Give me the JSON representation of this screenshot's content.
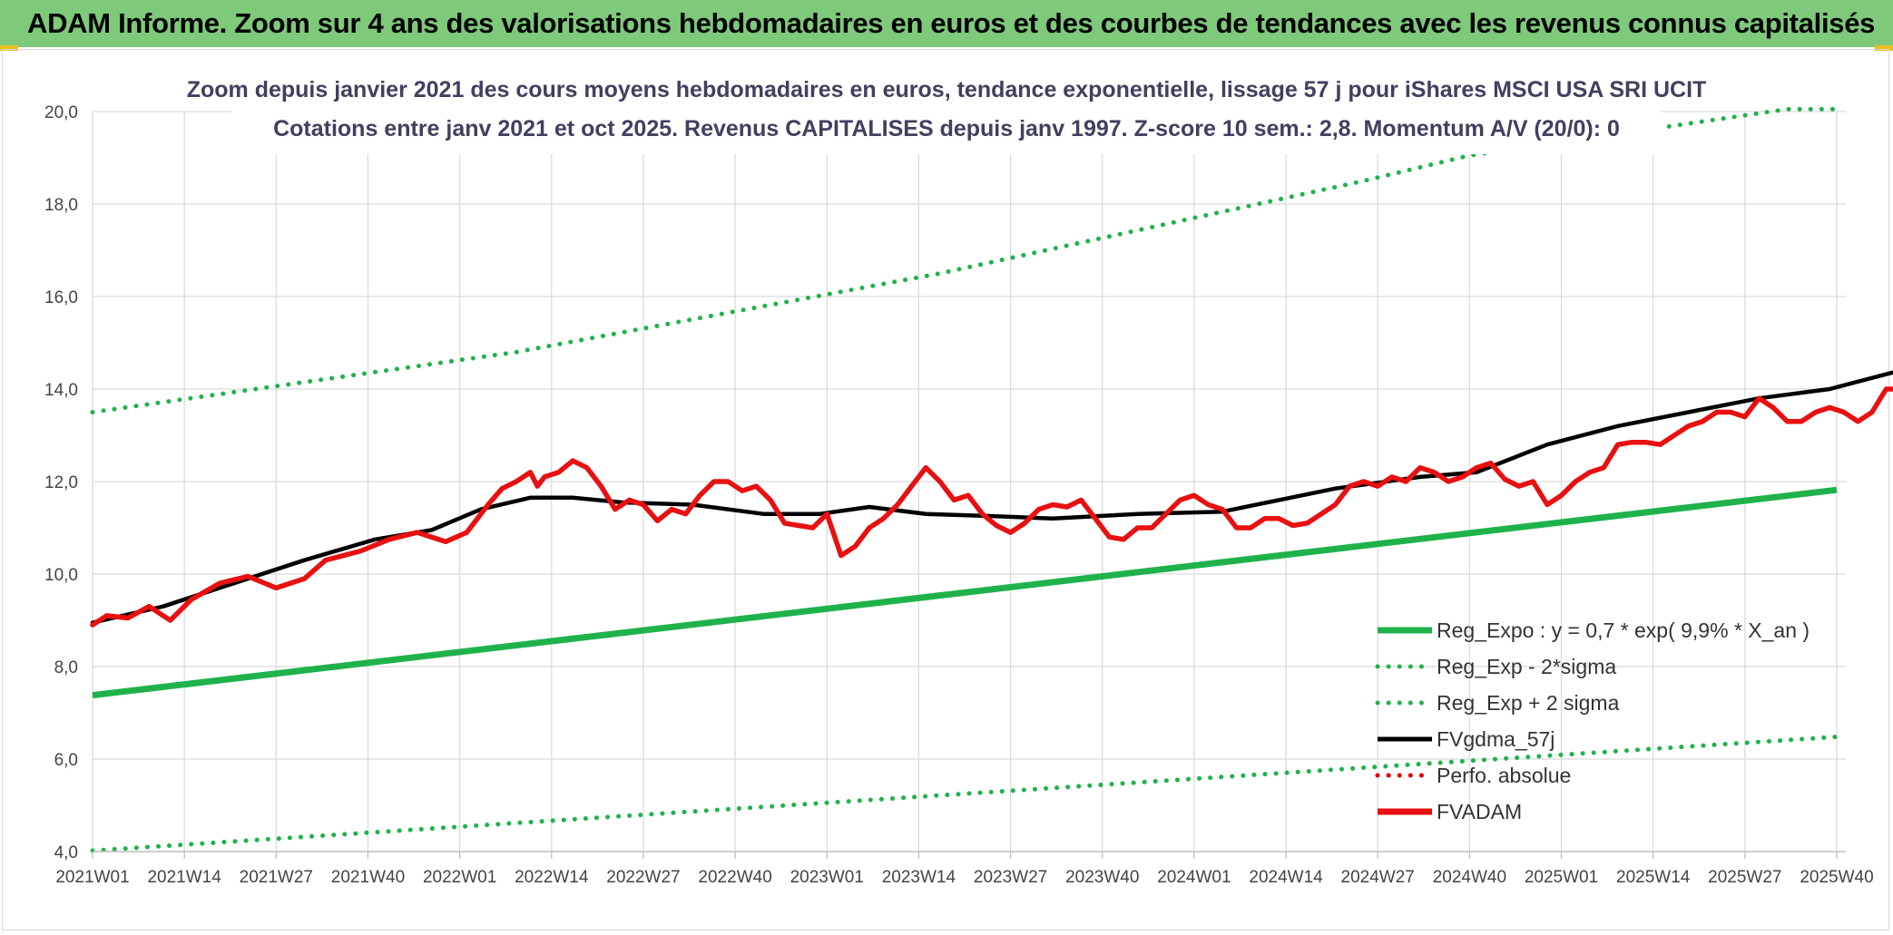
{
  "banner": {
    "title": "ADAM Informe. Zoom sur 4 ans des valorisations hebdomadaires en euros et des courbes de tendances avec les revenus connus capitalisés",
    "color": "#7ec97a"
  },
  "chart_data": {
    "type": "line",
    "title_line1": "Zoom depuis janvier 2021 des cours moyens hebdomadaires en euros, tendance exponentielle, lissage 57 j pour iShares MSCI USA SRI UCIT",
    "title_line2": "Cotations entre janv 2021 et oct 2025. Revenus CAPITALISES depuis janv 1997. Z-score 10 sem.: 2,8. Momentum A/V (20/0): 0",
    "ylim": [
      4,
      20
    ],
    "yticks": [
      "4,0",
      "6,0",
      "8,0",
      "10,0",
      "12,0",
      "14,0",
      "16,0",
      "18,0",
      "20,0"
    ],
    "xtick_labels": [
      "2021W01",
      "2021W14",
      "2021W27",
      "2021W40",
      "2022W01",
      "2022W14",
      "2022W27",
      "2022W40",
      "2023W01",
      "2023W14",
      "2023W27",
      "2023W40",
      "2024W01",
      "2024W14",
      "2024W27",
      "2024W40",
      "2025W01",
      "2025W14",
      "2025W27",
      "2025W40"
    ],
    "week_count": 248,
    "series": [
      {
        "name": "Reg_Expo : y = 0,7 * exp( 9,9% *  X_an )",
        "style": "solid",
        "color": "#1fb24b",
        "points": [
          [
            0,
            7.38
          ],
          [
            247,
            11.82
          ]
        ]
      },
      {
        "name": "Reg_Exp - 2*sigma",
        "style": "dotted",
        "color": "#1fb24b",
        "points": [
          [
            0,
            4.02
          ],
          [
            247,
            6.48
          ]
        ]
      },
      {
        "name": "Reg_Exp + 2 sigma",
        "style": "dotted",
        "color": "#1fb24b",
        "points": [
          [
            0,
            13.5
          ],
          [
            60,
            14.8
          ],
          [
            120,
            16.5
          ],
          [
            180,
            18.5
          ],
          [
            195,
            19.05
          ],
          [
            240,
            20.05
          ],
          [
            247,
            20.05
          ]
        ]
      },
      {
        "name": "FVgdma_57j",
        "style": "solid",
        "color": "#000000",
        "points": [
          [
            0,
            8.95
          ],
          [
            10,
            9.3
          ],
          [
            20,
            9.8
          ],
          [
            30,
            10.3
          ],
          [
            40,
            10.75
          ],
          [
            48,
            10.95
          ],
          [
            55,
            11.4
          ],
          [
            62,
            11.65
          ],
          [
            68,
            11.65
          ],
          [
            75,
            11.55
          ],
          [
            85,
            11.5
          ],
          [
            95,
            11.3
          ],
          [
            103,
            11.3
          ],
          [
            110,
            11.45
          ],
          [
            118,
            11.3
          ],
          [
            128,
            11.25
          ],
          [
            136,
            11.2
          ],
          [
            148,
            11.3
          ],
          [
            160,
            11.35
          ],
          [
            168,
            11.6
          ],
          [
            176,
            11.85
          ],
          [
            188,
            12.1
          ],
          [
            196,
            12.2
          ],
          [
            206,
            12.8
          ],
          [
            216,
            13.2
          ],
          [
            226,
            13.5
          ],
          [
            236,
            13.8
          ],
          [
            246,
            14.0
          ],
          [
            256,
            14.4
          ],
          [
            264,
            14.8
          ],
          [
            271,
            15.2
          ],
          [
            277,
            15.2
          ],
          [
            283,
            15.05
          ],
          [
            290,
            14.5
          ],
          [
            296,
            14.15
          ],
          [
            304,
            14.35
          ],
          [
            316,
            14.6
          ],
          [
            320,
            14.8
          ],
          [
            322,
            14.9
          ]
        ]
      },
      {
        "name": "Perfo. absolue",
        "style": "dotted",
        "color": "#e00000",
        "points": []
      },
      {
        "name": "FVADAM",
        "style": "solid",
        "color": "#e81010",
        "points": [
          [
            0,
            8.9
          ],
          [
            2,
            9.1
          ],
          [
            5,
            9.05
          ],
          [
            8,
            9.3
          ],
          [
            11,
            9.0
          ],
          [
            14,
            9.45
          ],
          [
            18,
            9.8
          ],
          [
            22,
            9.95
          ],
          [
            26,
            9.7
          ],
          [
            30,
            9.9
          ],
          [
            33,
            10.3
          ],
          [
            38,
            10.5
          ],
          [
            42,
            10.75
          ],
          [
            46,
            10.9
          ],
          [
            50,
            10.7
          ],
          [
            53,
            10.9
          ],
          [
            56,
            11.5
          ],
          [
            58,
            11.85
          ],
          [
            60,
            12.0
          ],
          [
            62,
            12.2
          ],
          [
            63,
            11.9
          ],
          [
            64,
            12.1
          ],
          [
            66,
            12.2
          ],
          [
            68,
            12.45
          ],
          [
            70,
            12.3
          ],
          [
            72,
            11.9
          ],
          [
            74,
            11.4
          ],
          [
            76,
            11.6
          ],
          [
            78,
            11.5
          ],
          [
            80,
            11.15
          ],
          [
            82,
            11.4
          ],
          [
            84,
            11.3
          ],
          [
            86,
            11.7
          ],
          [
            88,
            12.0
          ],
          [
            90,
            12.0
          ],
          [
            92,
            11.8
          ],
          [
            94,
            11.9
          ],
          [
            96,
            11.6
          ],
          [
            98,
            11.1
          ],
          [
            100,
            11.05
          ],
          [
            102,
            11.0
          ],
          [
            104,
            11.3
          ],
          [
            106,
            10.4
          ],
          [
            108,
            10.6
          ],
          [
            110,
            11.0
          ],
          [
            112,
            11.2
          ],
          [
            114,
            11.5
          ],
          [
            116,
            11.9
          ],
          [
            118,
            12.3
          ],
          [
            120,
            12.0
          ],
          [
            122,
            11.6
          ],
          [
            124,
            11.7
          ],
          [
            126,
            11.3
          ],
          [
            128,
            11.05
          ],
          [
            130,
            10.9
          ],
          [
            132,
            11.1
          ],
          [
            134,
            11.4
          ],
          [
            136,
            11.5
          ],
          [
            138,
            11.45
          ],
          [
            140,
            11.6
          ],
          [
            142,
            11.2
          ],
          [
            144,
            10.8
          ],
          [
            146,
            10.75
          ],
          [
            148,
            11.0
          ],
          [
            150,
            11.0
          ],
          [
            152,
            11.3
          ],
          [
            154,
            11.6
          ],
          [
            156,
            11.7
          ],
          [
            158,
            11.5
          ],
          [
            160,
            11.4
          ],
          [
            162,
            11.0
          ],
          [
            164,
            11.0
          ],
          [
            166,
            11.2
          ],
          [
            168,
            11.2
          ],
          [
            170,
            11.05
          ],
          [
            172,
            11.1
          ],
          [
            174,
            11.3
          ],
          [
            176,
            11.5
          ],
          [
            178,
            11.9
          ],
          [
            180,
            12.0
          ],
          [
            182,
            11.9
          ],
          [
            184,
            12.1
          ],
          [
            186,
            12.0
          ],
          [
            188,
            12.3
          ],
          [
            190,
            12.2
          ],
          [
            192,
            12.0
          ],
          [
            194,
            12.1
          ],
          [
            196,
            12.3
          ],
          [
            198,
            12.4
          ],
          [
            200,
            12.05
          ],
          [
            202,
            11.9
          ],
          [
            204,
            12.0
          ],
          [
            206,
            11.5
          ],
          [
            208,
            11.7
          ],
          [
            210,
            12.0
          ],
          [
            212,
            12.2
          ],
          [
            214,
            12.3
          ],
          [
            216,
            12.8
          ],
          [
            218,
            12.85
          ],
          [
            220,
            12.85
          ],
          [
            222,
            12.8
          ],
          [
            224,
            13.0
          ],
          [
            226,
            13.2
          ],
          [
            228,
            13.3
          ],
          [
            230,
            13.5
          ],
          [
            232,
            13.5
          ],
          [
            234,
            13.4
          ],
          [
            236,
            13.8
          ],
          [
            238,
            13.6
          ],
          [
            240,
            13.3
          ],
          [
            242,
            13.3
          ],
          [
            244,
            13.5
          ],
          [
            246,
            13.6
          ],
          [
            248,
            13.5
          ],
          [
            250,
            13.3
          ],
          [
            252,
            13.5
          ],
          [
            254,
            14.0
          ],
          [
            256,
            14.0
          ],
          [
            258,
            14.1
          ],
          [
            260,
            14.3
          ],
          [
            262,
            13.3
          ],
          [
            264,
            13.9
          ],
          [
            266,
            13.7
          ],
          [
            268,
            13.6
          ],
          [
            270,
            14.1
          ],
          [
            272,
            14.3
          ],
          [
            274,
            14.5
          ],
          [
            276,
            14.8
          ],
          [
            278,
            14.7
          ],
          [
            280,
            15.7
          ],
          [
            282,
            15.8
          ],
          [
            284,
            16.05
          ],
          [
            286,
            16.0
          ],
          [
            288,
            15.7
          ],
          [
            290,
            15.6
          ],
          [
            292,
            15.7
          ],
          [
            294,
            16.0
          ],
          [
            296,
            15.65
          ],
          [
            298,
            15.7
          ],
          [
            300,
            15.3
          ],
          [
            302,
            14.0
          ],
          [
            304,
            14.1
          ],
          [
            306,
            13.3
          ],
          [
            308,
            12.8
          ],
          [
            310,
            12.75
          ],
          [
            312,
            13.6
          ],
          [
            314,
            14.3
          ],
          [
            316,
            14.4
          ],
          [
            318,
            14.3
          ],
          [
            320,
            14.2
          ],
          [
            322,
            14.4
          ],
          [
            324,
            14.5
          ],
          [
            326,
            14.7
          ],
          [
            328,
            14.5
          ],
          [
            330,
            14.8
          ],
          [
            332,
            14.6
          ],
          [
            334,
            14.7
          ],
          [
            336,
            15.15
          ]
        ]
      }
    ],
    "legend": [
      "Reg_Expo : y = 0,7 * exp( 9,9% *  X_an )",
      "Reg_Exp - 2*sigma",
      "Reg_Exp + 2 sigma",
      "FVgdma_57j",
      "Perfo. absolue",
      "FVADAM"
    ]
  }
}
